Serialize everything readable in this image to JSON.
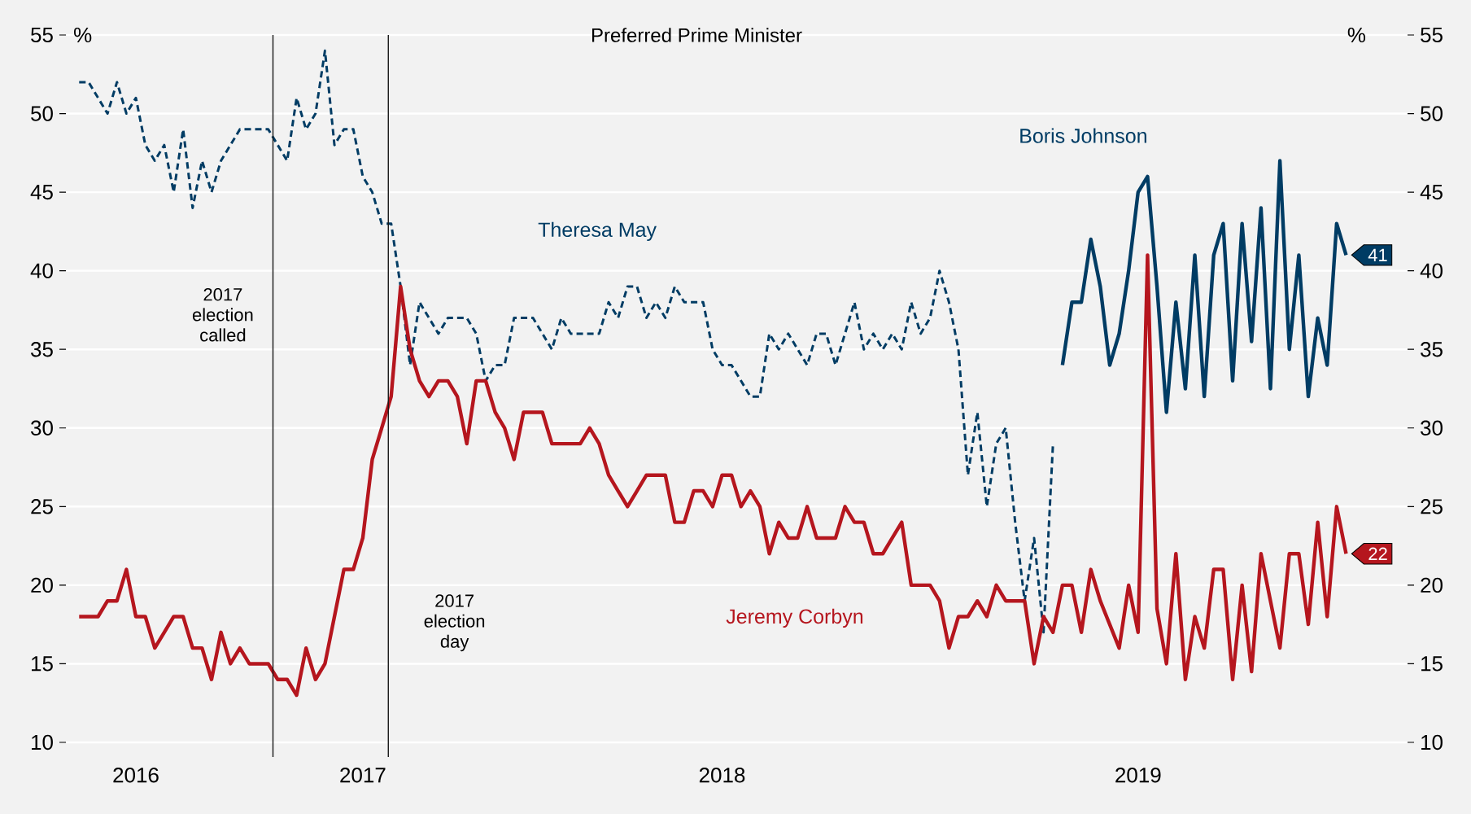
{
  "chart_data": {
    "type": "line",
    "title": "Preferred Prime Minister",
    "ylabel": "%",
    "y2label": "%",
    "categories": [
      null,
      null,
      null,
      null,
      null,
      null,
      "2016",
      null,
      null,
      null,
      null,
      null,
      null,
      null,
      null,
      null,
      null,
      null,
      null,
      null,
      null,
      null,
      null,
      null,
      null,
      null,
      null,
      null,
      null,
      null,
      "2017",
      null,
      null,
      null,
      null,
      null,
      null,
      null,
      null,
      null,
      null,
      null,
      null,
      null,
      null,
      null,
      null,
      null,
      null,
      null,
      null,
      null,
      null,
      null,
      null,
      null,
      null,
      null,
      null,
      null,
      null,
      null,
      null,
      null,
      null,
      null,
      null,
      null,
      "2018",
      null,
      null,
      null,
      null,
      null,
      null,
      null,
      null,
      null,
      null,
      null,
      null,
      null,
      null,
      null,
      null,
      null,
      null,
      null,
      null,
      null,
      null,
      null,
      null,
      null,
      null,
      null,
      null,
      null,
      null,
      null,
      null,
      null,
      null,
      null,
      null,
      null,
      null,
      null,
      null,
      null,
      null,
      null,
      "2019",
      null,
      null,
      null,
      null,
      null,
      null,
      null,
      null,
      null,
      null,
      null,
      null,
      null,
      null,
      null,
      null,
      null,
      null,
      null,
      null,
      null,
      null
    ],
    "ylim": [
      10,
      55
    ],
    "y2lim": [
      10,
      55
    ],
    "yticks": [
      10,
      15,
      20,
      25,
      30,
      35,
      40,
      45,
      50,
      55
    ],
    "y2ticks": [
      10,
      15,
      20,
      25,
      30,
      35,
      40,
      45,
      50,
      55
    ],
    "grid": "y",
    "series": [
      {
        "name": "Theresa May",
        "color": "#003c64",
        "line_style": "dashed",
        "values": [
          52,
          52,
          51,
          50,
          52,
          50,
          51,
          48,
          47,
          48,
          45,
          49,
          44,
          47,
          45,
          47,
          48,
          49,
          49,
          49,
          49,
          48,
          47,
          51,
          49,
          50,
          54,
          48,
          49,
          49,
          46,
          45,
          43,
          43,
          39,
          34,
          38,
          37,
          36,
          37,
          37,
          37,
          36,
          33,
          34,
          34,
          37,
          37,
          37,
          36,
          35,
          37,
          36,
          36,
          36,
          36,
          38,
          37,
          39,
          39,
          37,
          38,
          37,
          39,
          38,
          38,
          38,
          35,
          34,
          34,
          33,
          32,
          32,
          36,
          35,
          36,
          35,
          34,
          36,
          36,
          34,
          36,
          38,
          35,
          36,
          35,
          36,
          35,
          38,
          36,
          37,
          40,
          38,
          35,
          27,
          31,
          25,
          29,
          30,
          24,
          19,
          23,
          17,
          29,
          null,
          null,
          null,
          null,
          null,
          null,
          null,
          null,
          null,
          null,
          null,
          null,
          null,
          null,
          null,
          null,
          null,
          null,
          null,
          null,
          null,
          null,
          null,
          null,
          null,
          null,
          null,
          null,
          null,
          null,
          null
        ]
      },
      {
        "name": "Boris Johnson",
        "color": "#003c64",
        "values": [
          null,
          null,
          null,
          null,
          null,
          null,
          null,
          null,
          null,
          null,
          null,
          null,
          null,
          null,
          null,
          null,
          null,
          null,
          null,
          null,
          null,
          null,
          null,
          null,
          null,
          null,
          null,
          null,
          null,
          null,
          null,
          null,
          null,
          null,
          null,
          null,
          null,
          null,
          null,
          null,
          null,
          null,
          null,
          null,
          null,
          null,
          null,
          null,
          null,
          null,
          null,
          null,
          null,
          null,
          null,
          null,
          null,
          null,
          null,
          null,
          null,
          null,
          null,
          null,
          null,
          null,
          null,
          null,
          null,
          null,
          null,
          null,
          null,
          null,
          null,
          null,
          null,
          null,
          null,
          null,
          null,
          null,
          null,
          null,
          null,
          null,
          null,
          null,
          null,
          null,
          null,
          null,
          null,
          null,
          null,
          null,
          null,
          null,
          null,
          null,
          null,
          null,
          null,
          null,
          34,
          38,
          38,
          42,
          39,
          34,
          36,
          40,
          45,
          46,
          39,
          31,
          38,
          32.5,
          41,
          32,
          41,
          43,
          33,
          43,
          35.5,
          44,
          32.5,
          47,
          35,
          41,
          32,
          37,
          34,
          43,
          41
        ]
      },
      {
        "name": "Jeremy Corbyn",
        "color": "#b5161e",
        "values": [
          18,
          18,
          18,
          19,
          19,
          21,
          18,
          18,
          16,
          17,
          18,
          18,
          16,
          16,
          14,
          17,
          15,
          16,
          15,
          15,
          15,
          14,
          14,
          13,
          16,
          14,
          15,
          18,
          21,
          21,
          23,
          28,
          30,
          32,
          39,
          35,
          33,
          32,
          33,
          33,
          32,
          29,
          33,
          33,
          31,
          30,
          28,
          31,
          31,
          31,
          29,
          29,
          29,
          29,
          30,
          29,
          27,
          26,
          25,
          26,
          27,
          27,
          27,
          24,
          24,
          26,
          26,
          25,
          27,
          27,
          25,
          26,
          25,
          22,
          24,
          23,
          23,
          25,
          23,
          23,
          23,
          25,
          24,
          24,
          22,
          22,
          23,
          24,
          20,
          20,
          20,
          19,
          16,
          18,
          18,
          19,
          18,
          20,
          19,
          19,
          19,
          15,
          18,
          17,
          20,
          20,
          17,
          21,
          19,
          17.5,
          16,
          20,
          17,
          41,
          18.5,
          15,
          22,
          14,
          18,
          16,
          21,
          21,
          14,
          20,
          14.5,
          22,
          19,
          16,
          22,
          22,
          17.5,
          24,
          18,
          25,
          22
        ]
      }
    ],
    "annotations": [
      "2017 election called",
      "2017 election day",
      "41",
      "22"
    ]
  }
}
